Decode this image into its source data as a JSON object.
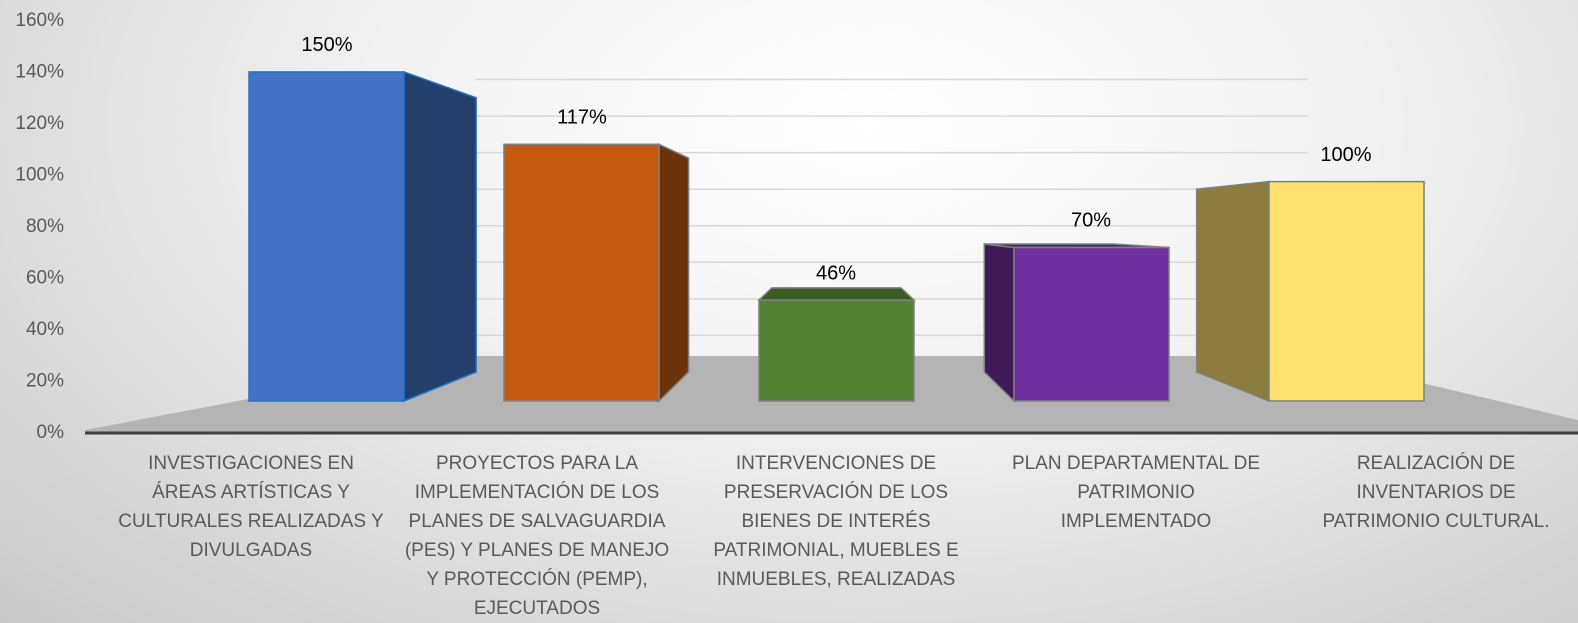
{
  "chart_data": {
    "type": "bar3d",
    "categories": [
      "INVESTIGACIONES EN ÁREAS ARTÍSTICAS Y CULTURALES REALIZADAS Y DIVULGADAS",
      "PROYECTOS PARA LA IMPLEMENTACIÓN DE LOS PLANES DE SALVAGUARDIA (PES) Y PLANES DE MANEJO Y PROTECCIÓN (PEMP), EJECUTADOS",
      "INTERVENCIONES DE PRESERVACIÓN DE LOS BIENES DE INTERÉS PATRIMONIAL, MUEBLES E INMUEBLES, REALIZADAS",
      "PLAN DEPARTAMENTAL DE PATRIMONIO IMPLEMENTADO",
      "REALIZACIÓN DE INVENTARIOS DE PATRIMONIO CULTURAL."
    ],
    "values": [
      150,
      117,
      46,
      70,
      100
    ],
    "value_labels": [
      "150%",
      "117%",
      "46%",
      "70%",
      "100%"
    ],
    "colors": [
      "#4472c4",
      "#c55a11",
      "#548235",
      "#7030a0",
      "#ffe170"
    ],
    "ylim": [
      0,
      160
    ],
    "yticks": [
      {
        "value": 0,
        "label": "0%"
      },
      {
        "value": 20,
        "label": "20%"
      },
      {
        "value": 40,
        "label": "40%"
      },
      {
        "value": 60,
        "label": "60%"
      },
      {
        "value": 80,
        "label": "80%"
      },
      {
        "value": 100,
        "label": "100%"
      },
      {
        "value": 120,
        "label": "120%"
      },
      {
        "value": 140,
        "label": "140%"
      },
      {
        "value": 160,
        "label": "160%"
      }
    ],
    "grid": true
  }
}
